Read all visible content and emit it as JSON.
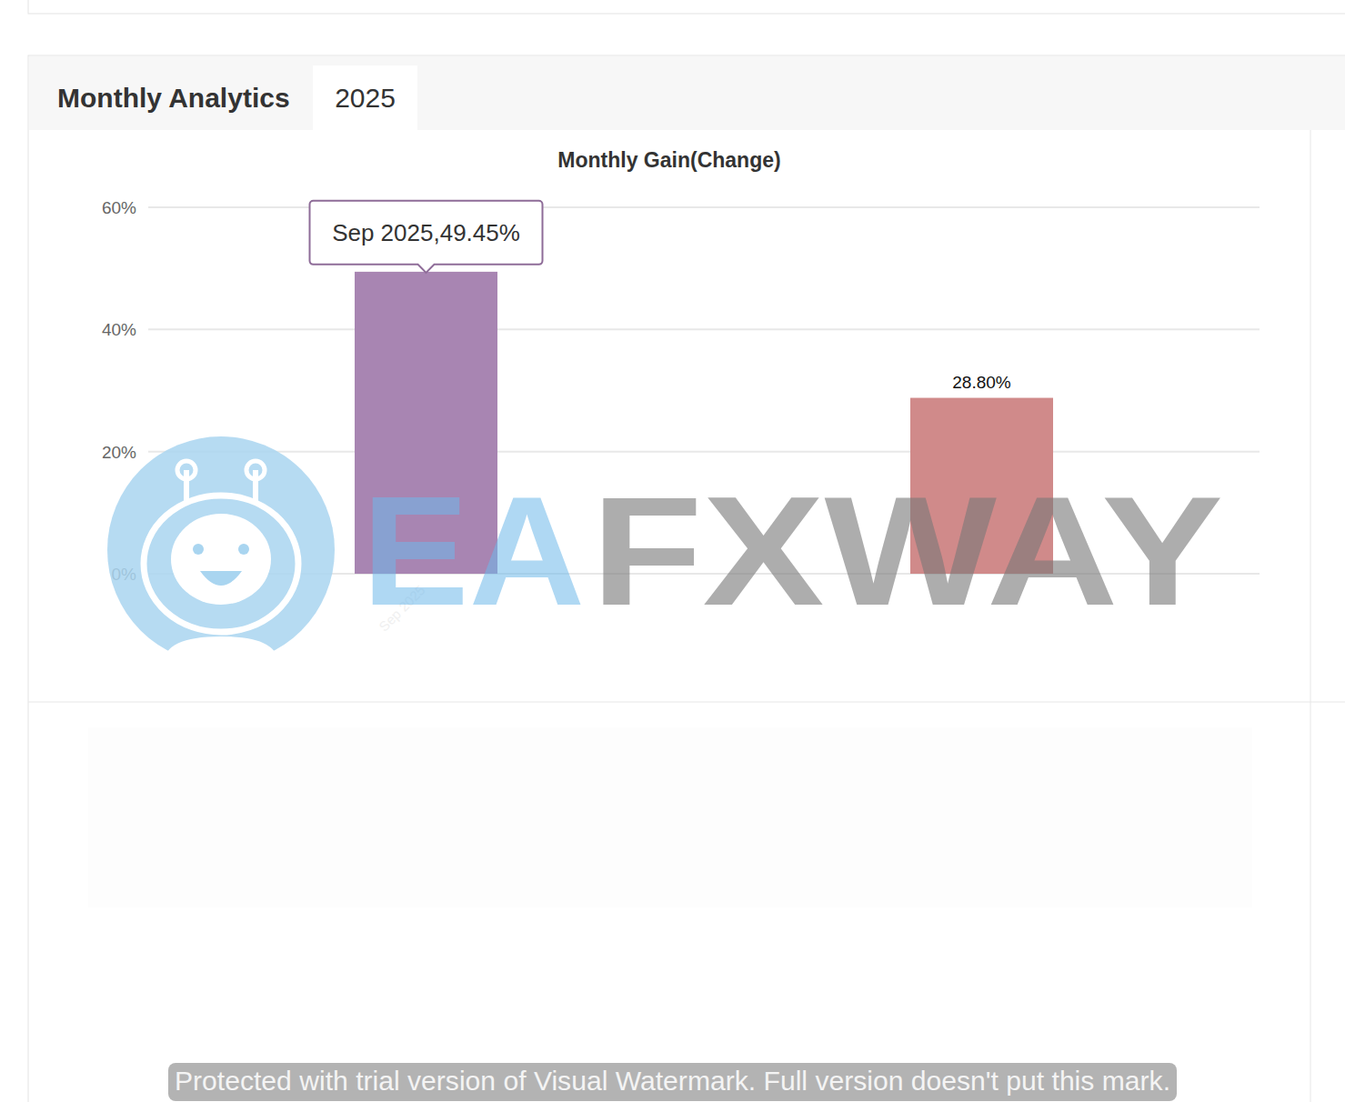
{
  "page": {
    "tabs": [
      "Monthly Analytics",
      "2025"
    ],
    "watermark": {
      "logo": [
        "EA",
        "FXWAY"
      ],
      "banner": "Protected with trial version of Visual Watermark. Full version doesn't put this mark."
    }
  },
  "chart_data": {
    "type": "bar",
    "title": "Monthly Gain(Change)",
    "categories": [
      "Sep 2025",
      null
    ],
    "values": [
      49.45,
      28.8
    ],
    "value_labels": [
      null,
      "28.80%"
    ],
    "data_labels": true,
    "colors": [
      "#a885b2",
      "#d08a8a"
    ],
    "annotations": [
      {
        "text": "Sep 2025,49.45%"
      }
    ],
    "ylim": [
      0,
      60
    ],
    "yticks": [
      {
        "value": 0,
        "label": "0%"
      },
      {
        "value": 20,
        "label": "20%"
      },
      {
        "value": 40,
        "label": "40%"
      },
      {
        "value": 60,
        "label": "60%"
      }
    ],
    "grid": true
  }
}
